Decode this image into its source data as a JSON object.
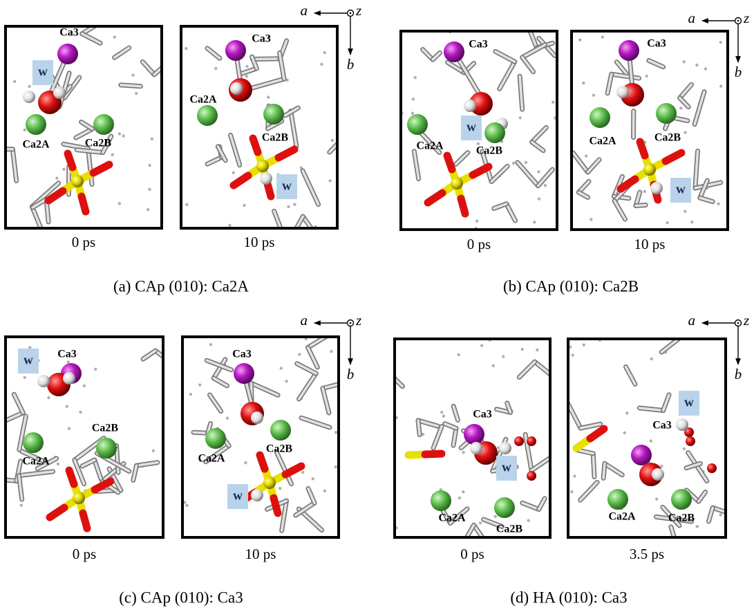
{
  "panels": [
    {
      "caption": "(a) CAp (010): Ca2A",
      "axes": {
        "a": "a",
        "z": "z",
        "b": "b"
      },
      "frames": [
        {
          "time": "0 ps",
          "labels": [
            "Ca3",
            "w",
            "Ca2A",
            "Ca2B"
          ]
        },
        {
          "time": "10 ps",
          "labels": [
            "Ca3",
            "w",
            "Ca2A",
            "Ca2B"
          ]
        }
      ]
    },
    {
      "caption": "(b) CAp (010): Ca2B",
      "axes": {
        "a": "a",
        "z": "z",
        "b": "b"
      },
      "frames": [
        {
          "time": "0 ps",
          "labels": [
            "Ca3",
            "w",
            "Ca2A",
            "Ca2B"
          ]
        },
        {
          "time": "10 ps",
          "labels": [
            "Ca3",
            "w",
            "Ca2A",
            "Ca2B"
          ]
        }
      ]
    },
    {
      "caption": "(c) CAp (010): Ca3",
      "axes": {
        "a": "a",
        "z": "z",
        "b": "b"
      },
      "frames": [
        {
          "time": "0 ps",
          "labels": [
            "Ca3",
            "w",
            "Ca2A",
            "Ca2B"
          ]
        },
        {
          "time": "10 ps",
          "labels": [
            "Ca3",
            "w",
            "Ca2A",
            "Ca2B"
          ]
        }
      ]
    },
    {
      "caption": "(d) HA (010): Ca3",
      "axes": {
        "a": "a",
        "z": "z",
        "b": "b"
      },
      "frames": [
        {
          "time": "0 ps",
          "labels": [
            "Ca3",
            "w",
            "Ca2A",
            "Ca2B"
          ]
        },
        {
          "time": "3.5 ps",
          "labels": [
            "Ca3",
            "w",
            "Ca2A",
            "Ca2B"
          ]
        }
      ]
    }
  ]
}
